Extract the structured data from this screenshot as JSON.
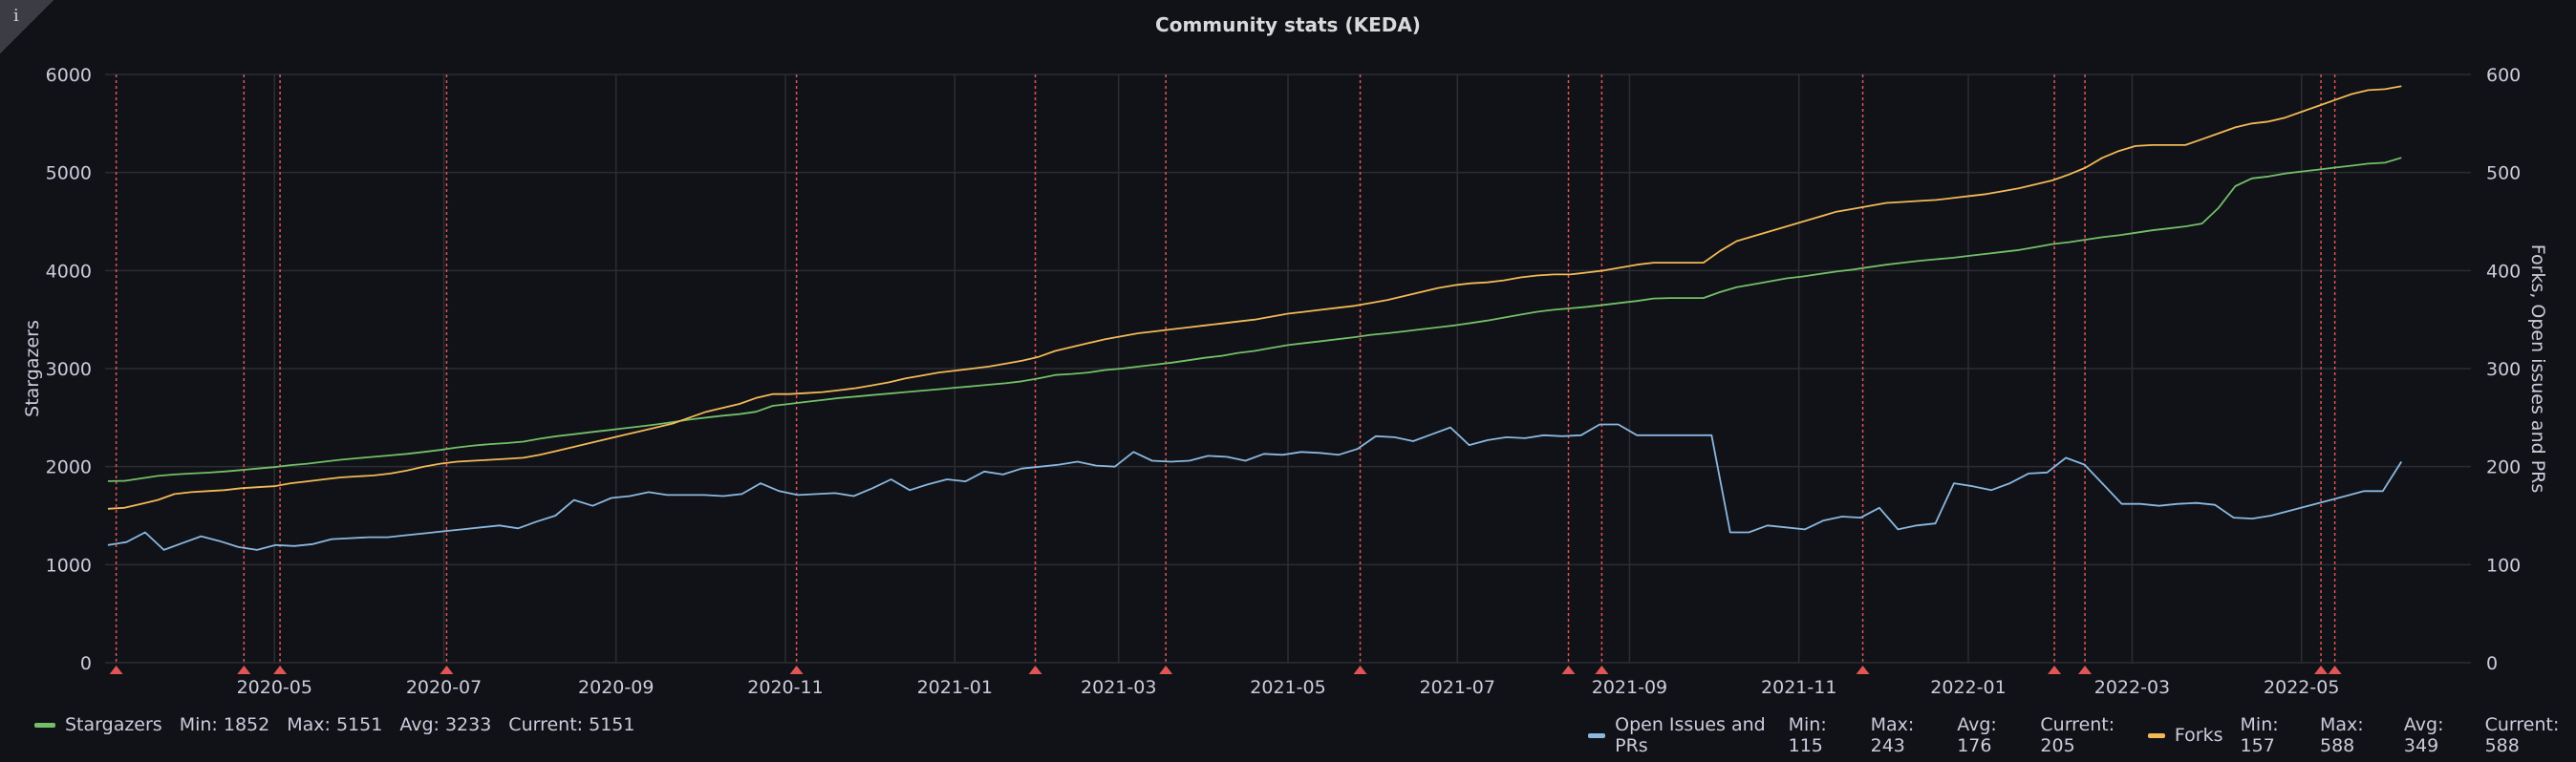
{
  "panel": {
    "title": "Community stats (KEDA)",
    "info_icon": "i"
  },
  "colors": {
    "background": "#111217",
    "grid": "#2c2d33",
    "stargazers": "#73bf69",
    "forks": "#f2b957",
    "issues": "#8ab8e0",
    "annotation": "#e05555"
  },
  "chart_data": {
    "type": "line",
    "title": "Community stats (KEDA)",
    "xlabel": "",
    "ylabel_left": "Stargazers",
    "ylabel_right": "Forks, Open issues and PRs",
    "ylim_left": [
      0,
      6000
    ],
    "ylim_right": [
      0,
      600
    ],
    "x_domain": [
      "2020-03-01",
      "2022-07-01"
    ],
    "x_ticks": [
      "2020-05",
      "2020-07",
      "2020-09",
      "2020-11",
      "2021-01",
      "2021-03",
      "2021-05",
      "2021-07",
      "2021-09",
      "2021-11",
      "2022-01",
      "2022-03",
      "2022-05"
    ],
    "y_ticks_left": [
      "0",
      "1000",
      "2000",
      "3000",
      "4000",
      "5000",
      "6000"
    ],
    "y_ticks_right": [
      "0",
      "100",
      "200",
      "300",
      "400",
      "500",
      "600"
    ],
    "x_sample_start": "2020-03-02",
    "x_sample_step_days": 7,
    "series": [
      {
        "name": "Stargazers",
        "axis": "left",
        "color": "#73bf69",
        "legend": {
          "min": "Min: 1852",
          "max": "Max: 5151",
          "avg": "Avg: 3233",
          "current": "Current: 5151"
        },
        "values": [
          1852,
          1855,
          1880,
          1905,
          1920,
          1930,
          1938,
          1950,
          1965,
          1980,
          1995,
          2015,
          2030,
          2050,
          2070,
          2085,
          2100,
          2115,
          2130,
          2150,
          2170,
          2195,
          2215,
          2230,
          2240,
          2255,
          2285,
          2310,
          2330,
          2350,
          2370,
          2390,
          2410,
          2430,
          2455,
          2480,
          2500,
          2520,
          2535,
          2560,
          2620,
          2640,
          2660,
          2680,
          2700,
          2715,
          2730,
          2745,
          2760,
          2775,
          2790,
          2805,
          2820,
          2835,
          2850,
          2870,
          2900,
          2935,
          2945,
          2960,
          2985,
          3000,
          3020,
          3040,
          3060,
          3085,
          3110,
          3130,
          3160,
          3180,
          3210,
          3240,
          3260,
          3280,
          3300,
          3320,
          3345,
          3360,
          3380,
          3400,
          3420,
          3440,
          3465,
          3490,
          3520,
          3550,
          3580,
          3600,
          3615,
          3630,
          3650,
          3670,
          3690,
          3715,
          3720,
          3720,
          3720,
          3780,
          3830,
          3860,
          3890,
          3920,
          3940,
          3965,
          3990,
          4010,
          4035,
          4060,
          4080,
          4100,
          4115,
          4130,
          4150,
          4170,
          4190,
          4210,
          4240,
          4270,
          4290,
          4315,
          4340,
          4360,
          4385,
          4410,
          4430,
          4450,
          4480,
          4640,
          4860,
          4940,
          4960,
          4990,
          5010,
          5030,
          5050,
          5070,
          5090,
          5100,
          5151
        ]
      },
      {
        "name": "Forks",
        "axis": "right",
        "color": "#f2b957",
        "legend": {
          "min": "Min: 157",
          "max": "Max: 588",
          "avg": "Avg: 349",
          "current": "Current: 588"
        },
        "values": [
          157,
          158,
          162,
          166,
          172,
          174,
          175,
          176,
          178,
          179,
          180,
          183,
          185,
          187,
          189,
          190,
          191,
          193,
          196,
          200,
          203,
          205,
          206,
          207,
          208,
          209,
          212,
          216,
          220,
          224,
          228,
          232,
          236,
          240,
          244,
          250,
          256,
          260,
          264,
          270,
          274,
          274,
          275,
          276,
          278,
          280,
          283,
          286,
          290,
          293,
          296,
          298,
          300,
          302,
          305,
          308,
          312,
          318,
          322,
          326,
          330,
          333,
          336,
          338,
          340,
          342,
          344,
          346,
          348,
          350,
          353,
          356,
          358,
          360,
          362,
          364,
          367,
          370,
          374,
          378,
          382,
          385,
          387,
          388,
          390,
          393,
          395,
          396,
          396,
          398,
          400,
          403,
          406,
          408,
          408,
          408,
          408,
          420,
          430,
          435,
          440,
          445,
          450,
          455,
          460,
          463,
          466,
          469,
          470,
          471,
          472,
          474,
          476,
          478,
          481,
          484,
          488,
          492,
          498,
          505,
          515,
          522,
          527,
          528,
          528,
          528,
          534,
          540,
          546,
          550,
          552,
          556,
          562,
          568,
          574,
          580,
          584,
          585,
          588
        ]
      },
      {
        "name": "Open Issues and PRs",
        "axis": "right",
        "color": "#8ab8e0",
        "legend": {
          "min": "Min: 115",
          "max": "Max: 243",
          "avg": "Avg: 176",
          "current": "Current: 205"
        },
        "values": [
          120,
          123,
          133,
          115,
          122,
          129,
          124,
          118,
          115,
          120,
          119,
          121,
          126,
          127,
          128,
          128,
          130,
          132,
          134,
          136,
          138,
          140,
          137,
          144,
          150,
          166,
          160,
          168,
          170,
          174,
          171,
          171,
          171,
          170,
          172,
          183,
          175,
          171,
          172,
          173,
          170,
          178,
          187,
          176,
          182,
          187,
          185,
          195,
          192,
          198,
          200,
          202,
          205,
          201,
          200,
          215,
          206,
          205,
          206,
          211,
          210,
          206,
          213,
          212,
          215,
          214,
          212,
          218,
          231,
          230,
          226,
          233,
          240,
          222,
          227,
          230,
          229,
          232,
          231,
          232,
          243,
          243,
          232,
          232,
          232,
          232,
          232,
          133,
          133,
          140,
          138,
          136,
          145,
          149,
          148,
          158,
          136,
          140,
          142,
          183,
          180,
          176,
          183,
          193,
          194,
          209,
          202,
          182,
          162,
          162,
          160,
          162,
          163,
          161,
          148,
          147,
          150,
          155,
          160,
          165,
          170,
          175,
          175,
          205
        ]
      }
    ],
    "annotations": [
      "2020-03-05",
      "2020-04-20",
      "2020-05-03",
      "2020-07-02",
      "2020-11-05",
      "2021-01-30",
      "2021-03-18",
      "2021-05-27",
      "2021-08-10",
      "2021-08-22",
      "2021-11-24",
      "2022-02-01",
      "2022-02-12",
      "2022-05-08",
      "2022-05-13"
    ]
  }
}
